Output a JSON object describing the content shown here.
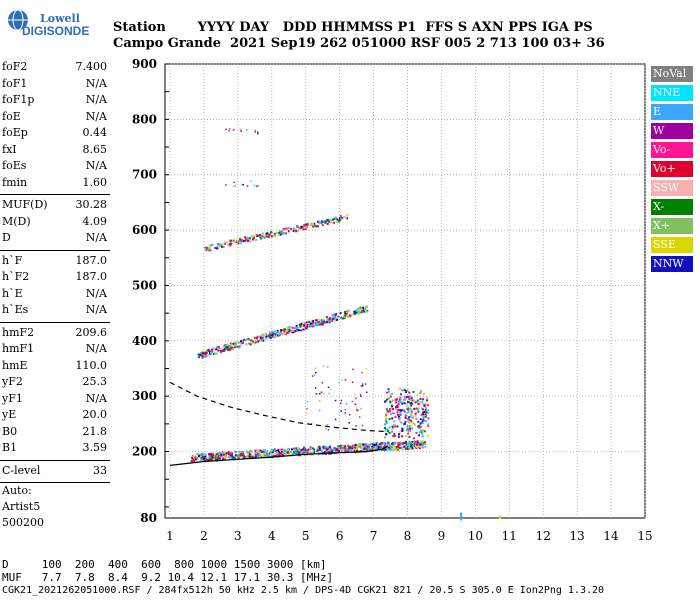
{
  "logo": {
    "brand": "Lowell",
    "name": "DIGISONDE"
  },
  "header": {
    "row1": "Station       YYYY DAY   DDD HHMMSS P1  FFS S AXN PPS IGA PS",
    "row2": "Campo Grande  2021 Sep19 262 051000 RSF 005 2 713 100 03+ 36"
  },
  "params": {
    "group1": [
      {
        "label": "foF2",
        "value": "7.400"
      },
      {
        "label": "foF1",
        "value": "N/A"
      },
      {
        "label": "foF1p",
        "value": "N/A"
      },
      {
        "label": "foE",
        "value": "N/A"
      },
      {
        "label": "foEp",
        "value": "0.44"
      },
      {
        "label": "fxI",
        "value": "8.65"
      },
      {
        "label": "foEs",
        "value": "N/A"
      },
      {
        "label": "fmin",
        "value": "1.60"
      }
    ],
    "group2": [
      {
        "label": "MUF(D)",
        "value": "30.28"
      },
      {
        "label": "M(D)",
        "value": "4.09"
      },
      {
        "label": "D",
        "value": "N/A"
      }
    ],
    "group3": [
      {
        "label": "h`F",
        "value": "187.0"
      },
      {
        "label": "h`F2",
        "value": "187.0"
      },
      {
        "label": "h`E",
        "value": "N/A"
      },
      {
        "label": "h`Es",
        "value": "N/A"
      }
    ],
    "group4": [
      {
        "label": "hmF2",
        "value": "209.6"
      },
      {
        "label": "hmF1",
        "value": "N/A"
      },
      {
        "label": "hmE",
        "value": "110.0"
      },
      {
        "label": "yF2",
        "value": "25.3"
      },
      {
        "label": "yF1",
        "value": "N/A"
      },
      {
        "label": "yE",
        "value": "20.0"
      },
      {
        "label": "B0",
        "value": "21.8"
      },
      {
        "label": "B1",
        "value": "3.59"
      }
    ],
    "group5": [
      {
        "label": "C-level",
        "value": "33"
      }
    ]
  },
  "auto": {
    "line1": "Auto:",
    "line2": "Artist5",
    "line3": "500200"
  },
  "legend": [
    {
      "label": "NoVal",
      "color": "#808080",
      "text_color": "#ffffff"
    },
    {
      "label": "NNE",
      "color": "#00e5ff",
      "text_color": "#ffffff"
    },
    {
      "label": "E",
      "color": "#3aa6ff",
      "text_color": "#ffffff"
    },
    {
      "label": "W",
      "color": "#a000a0",
      "text_color": "#ffffff"
    },
    {
      "label": "Vo-",
      "color": "#ff1493",
      "text_color": "#ffffff"
    },
    {
      "label": "Vo+",
      "color": "#e00030",
      "text_color": "#ffffff"
    },
    {
      "label": "SSW",
      "color": "#f8b0b0",
      "text_color": "#ffffff"
    },
    {
      "label": "X-",
      "color": "#008000",
      "text_color": "#ffffff"
    },
    {
      "label": "X+",
      "color": "#80c060",
      "text_color": "#ffffff"
    },
    {
      "label": "SSE",
      "color": "#d8d800",
      "text_color": "#ffffff"
    },
    {
      "label": "NNW",
      "color": "#1010c0",
      "text_color": "#ffffff"
    }
  ],
  "chart_data": {
    "type": "scatter",
    "title": "",
    "xlabel": "",
    "ylabel": "",
    "xlim": [
      1,
      15
    ],
    "ylim": [
      80,
      900
    ],
    "x_ticks": [
      1,
      2,
      3,
      4,
      5,
      6,
      7,
      8,
      9,
      10,
      11,
      12,
      13,
      14,
      15
    ],
    "y_ticks": [
      80,
      200,
      300,
      400,
      500,
      600,
      700,
      800,
      900
    ],
    "grid": true,
    "legend_position": "right",
    "traces": [
      {
        "name": "F2 trace (1-hop)",
        "x_range": [
          1.6,
          8.5
        ],
        "h_start": 190,
        "h_end": 215,
        "cusp_x": 7.6,
        "cusp_h": 300
      },
      {
        "name": "F2 trace (2-hop)",
        "x_range": [
          1.8,
          6.8
        ],
        "h_start": 375,
        "h_end": 460
      },
      {
        "name": "F2 trace (3-hop)",
        "x_range": [
          2.0,
          6.2
        ],
        "h_start": 568,
        "h_end": 625
      }
    ],
    "profile_solid": [
      [
        1.0,
        175
      ],
      [
        2,
        182
      ],
      [
        3,
        186
      ],
      [
        4,
        190
      ],
      [
        5,
        195
      ],
      [
        6,
        198
      ],
      [
        6.8,
        200
      ],
      [
        7.3,
        205
      ],
      [
        7.4,
        210
      ]
    ],
    "profile_dashed": [
      [
        1.0,
        325
      ],
      [
        1.8,
        300
      ],
      [
        2.8,
        280
      ],
      [
        3.8,
        265
      ],
      [
        4.8,
        252
      ],
      [
        5.8,
        244
      ],
      [
        6.8,
        238
      ],
      [
        7.4,
        236
      ]
    ]
  },
  "footer": {
    "row1": "D     100  200  400  600  800 1000 1500 3000 [km]",
    "row2": "MUF   7.7  7.8  8.4  9.2 10.4 12.1 17.1 30.3 [MHz]",
    "row3": "CGK21_2021262051000.RSF / 284fx512h 50 kHz 2.5 km / DPS-4D CGK21 821 / 20.5 S 305.0 E Ion2Png 1.3.20"
  }
}
